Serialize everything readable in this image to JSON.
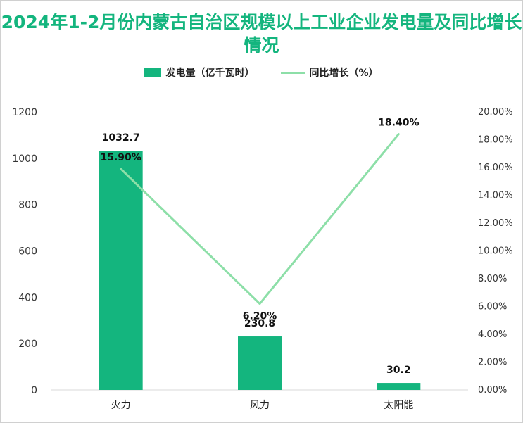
{
  "title": "2024年1-2月份内蒙古自治区规模以上工业企业发电量及同比增长情况",
  "colors": {
    "bar": "#14b57e",
    "line": "#8ddfa8",
    "title": "#14b57e",
    "axis_text": "#333333"
  },
  "legend": {
    "bar_label": "发电量（亿千瓦时）",
    "line_label": "同比增长（%）"
  },
  "chart_data": {
    "type": "bar",
    "categories": [
      "火力",
      "风力",
      "太阳能"
    ],
    "series": [
      {
        "name": "发电量（亿千瓦时）",
        "type": "bar",
        "axis": "left",
        "values": [
          1032.7,
          230.8,
          30.2
        ],
        "labels": [
          "1032.7",
          "230.8",
          "30.2"
        ]
      },
      {
        "name": "同比增长（%）",
        "type": "line",
        "axis": "right",
        "values": [
          15.9,
          6.2,
          18.4
        ],
        "labels": [
          "15.90%",
          "6.20%",
          "18.40%"
        ]
      }
    ],
    "y_left": {
      "ylim": [
        0,
        1200
      ],
      "ticks": [
        0,
        200,
        400,
        600,
        800,
        1000,
        1200
      ],
      "tick_labels": [
        "0",
        "200",
        "400",
        "600",
        "800",
        "1000",
        "1200"
      ]
    },
    "y_right": {
      "ylim": [
        0,
        20
      ],
      "ticks": [
        0,
        2,
        4,
        6,
        8,
        10,
        12,
        14,
        16,
        18,
        20
      ],
      "tick_labels": [
        "0.00%",
        "2.00%",
        "4.00%",
        "6.00%",
        "8.00%",
        "10.00%",
        "12.00%",
        "14.00%",
        "16.00%",
        "18.00%",
        "20.00%"
      ]
    },
    "grid": false,
    "legend_position": "top"
  }
}
